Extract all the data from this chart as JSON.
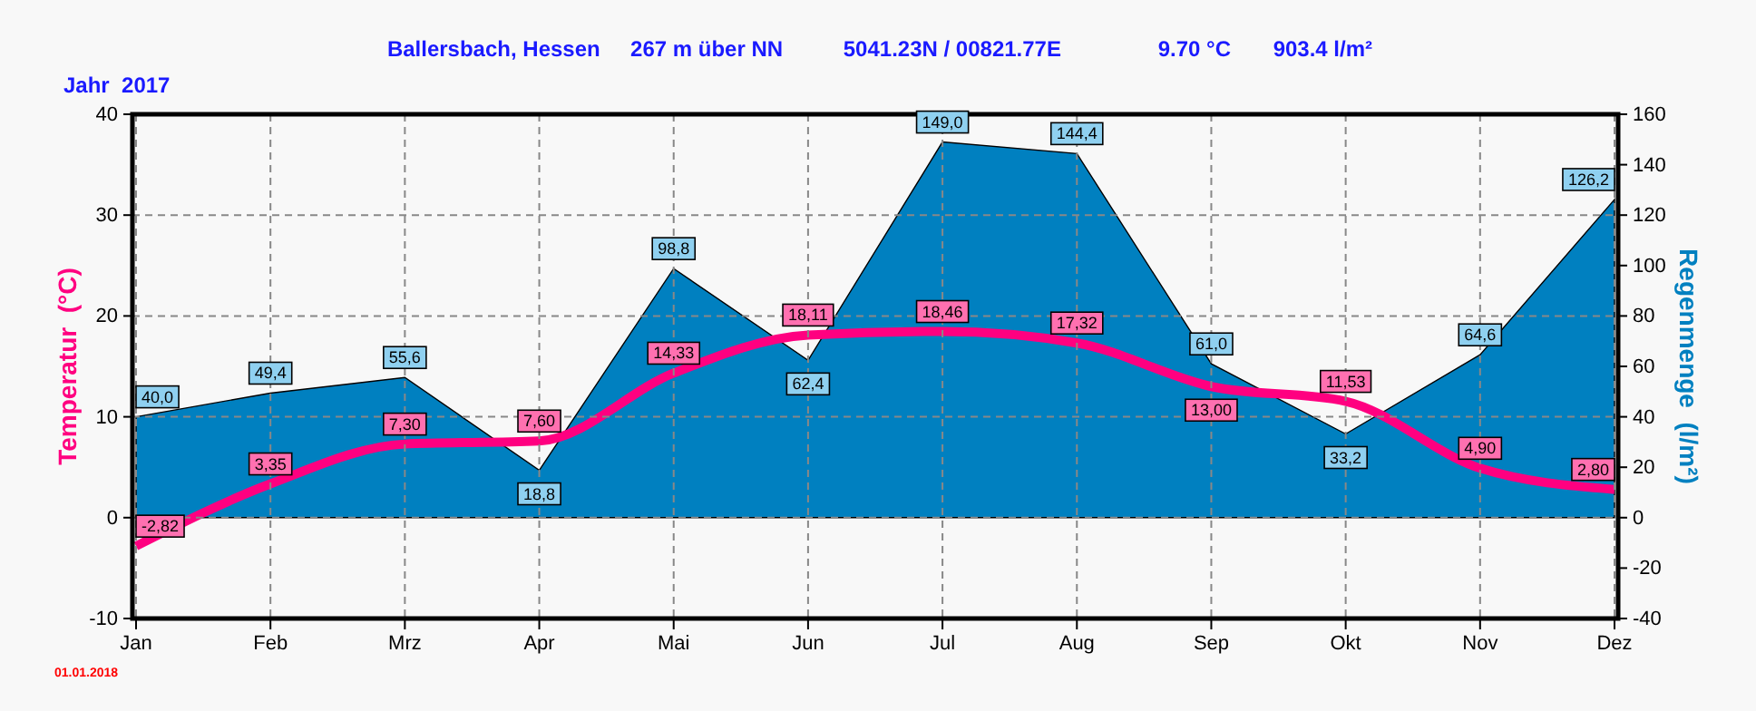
{
  "chart_data": {
    "type": "line",
    "title": "Ballersbach, Hessen     267 m über NN          5041.23N / 00821.77E                9.70 °C       903.4 l/m²",
    "subtitle": "Jahr  2017",
    "ylabel": "Temperatur  (°C)",
    "y2label": "Regenmenge  (l/m²)",
    "annotations": [
      "01.01.2018"
    ],
    "categories": [
      "Jan",
      "Feb",
      "Mrz",
      "Apr",
      "Mai",
      "Jun",
      "Jul",
      "Aug",
      "Sep",
      "Okt",
      "Nov",
      "Dez"
    ],
    "series": [
      {
        "type": "area",
        "axis": "y2",
        "color": "#0080c0",
        "values": [
          40.0,
          49.4,
          55.6,
          18.8,
          98.8,
          62.4,
          149.0,
          144.4,
          61.0,
          33.2,
          64.6,
          126.2
        ],
        "value_labels": [
          "40,0",
          "49,4",
          "55,6",
          "18,8",
          "98,8",
          "62,4",
          "149,0",
          "144,4",
          "61,0",
          "33,2",
          "64,6",
          "126,2"
        ]
      },
      {
        "color": "#ff0080",
        "values": [
          -2.82,
          3.35,
          7.3,
          7.6,
          14.33,
          18.11,
          18.46,
          17.32,
          13.0,
          11.53,
          4.9,
          2.8
        ],
        "value_labels": [
          "-2,82",
          "3,35",
          "7,30",
          "7,60",
          "14,33",
          "18,11",
          "18,46",
          "17,32",
          "13,00",
          "11,53",
          "4,90",
          "2,80"
        ]
      }
    ],
    "ylim": [
      -10,
      40
    ],
    "yticks": [
      -10,
      0,
      10,
      20,
      30,
      40
    ],
    "y2lim": [
      -40,
      160
    ],
    "y2ticks": [
      -40,
      -20,
      0,
      20,
      40,
      60,
      80,
      100,
      120,
      140,
      160
    ],
    "grid": true,
    "marker": "none",
    "line_style": "solid"
  }
}
